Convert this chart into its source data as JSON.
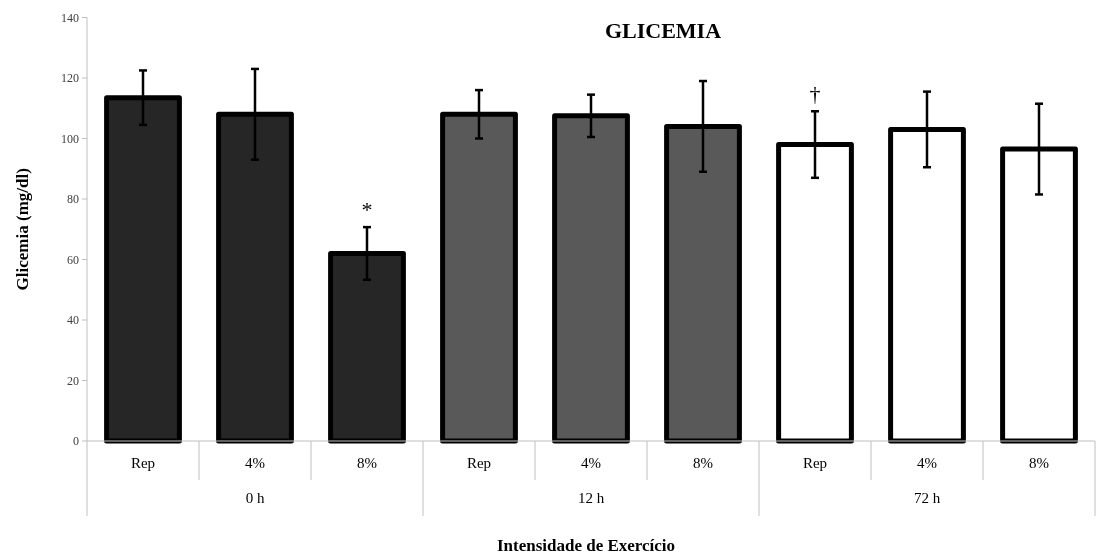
{
  "chart_data": {
    "type": "bar",
    "title": "GLICEMIA",
    "xlabel": "Intensidade de Exercício",
    "ylabel": "Glicemia (mg/dl)",
    "categories": [
      "Rep",
      "4%",
      "8%",
      "Rep",
      "4%",
      "8%",
      "Rep",
      "4%",
      "8%"
    ],
    "values": [
      113.5,
      108,
      62,
      108,
      107.5,
      104,
      98,
      103,
      96.5
    ],
    "errors": [
      9,
      15,
      8.7,
      8,
      7,
      15,
      11,
      12.5,
      15
    ],
    "colors": [
      "#262626",
      "#262626",
      "#262626",
      "#595959",
      "#595959",
      "#595959",
      "#ffffff",
      "#ffffff",
      "#ffffff"
    ],
    "ylim": [
      0,
      140
    ],
    "yticks": [
      0,
      20,
      40,
      60,
      80,
      100,
      120,
      140
    ],
    "grid": false,
    "annotations": [
      "*",
      "†",
      "0 h",
      "12 h",
      "72 h"
    ]
  }
}
